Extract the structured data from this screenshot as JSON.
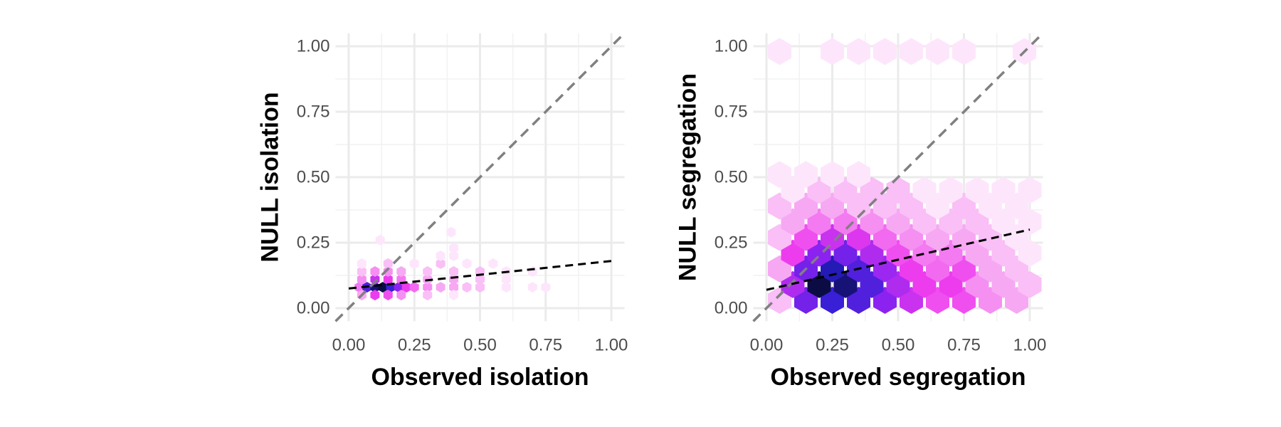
{
  "chart_data": [
    {
      "type": "hexbin",
      "x_label": "Observed isolation",
      "y_label": "NULL isolation",
      "xlim": [
        -0.05,
        1.05
      ],
      "ylim": [
        -0.05,
        1.05
      ],
      "xticks": [
        {
          "value": 0,
          "label": "0.00"
        },
        {
          "value": 0.25,
          "label": "0.25"
        },
        {
          "value": 0.5,
          "label": "0.50"
        },
        {
          "value": 0.75,
          "label": "0.75"
        },
        {
          "value": 1,
          "label": "1.00"
        }
      ],
      "yticks": [
        {
          "value": 0,
          "label": "0.00"
        },
        {
          "value": 0.25,
          "label": "0.25"
        },
        {
          "value": 0.5,
          "label": "0.50"
        },
        {
          "value": 0.75,
          "label": "0.75"
        },
        {
          "value": 1,
          "label": "1.00"
        }
      ],
      "grid": true,
      "colors": [
        "#fde6fb",
        "#f7a6f3",
        "#ee3cee",
        "#8a22f0",
        "#2a1ed0",
        "#0c0c45"
      ],
      "x": [
        0.04,
        0.07,
        0.1,
        0.13,
        0.16,
        0.19,
        0.22,
        0.25,
        0.3,
        0.35,
        0.4,
        0.45,
        0.5,
        0.6,
        0.7,
        0.75,
        0.05,
        0.1,
        0.15,
        0.2,
        0.3,
        0.4,
        0.05,
        0.1,
        0.15,
        0.2,
        0.3,
        0.4,
        0.5,
        0.6,
        0.05,
        0.1,
        0.15,
        0.2,
        0.3,
        0.4,
        0.5,
        0.6,
        0.7,
        0.05,
        0.15,
        0.25,
        0.35,
        0.45,
        0.55,
        0.35,
        0.4,
        0.4,
        0.12,
        0.39
      ],
      "y": [
        0.08,
        0.08,
        0.08,
        0.08,
        0.08,
        0.08,
        0.08,
        0.08,
        0.08,
        0.08,
        0.08,
        0.08,
        0.08,
        0.08,
        0.08,
        0.08,
        0.05,
        0.05,
        0.05,
        0.05,
        0.05,
        0.05,
        0.11,
        0.11,
        0.11,
        0.11,
        0.11,
        0.11,
        0.11,
        0.11,
        0.14,
        0.14,
        0.14,
        0.14,
        0.14,
        0.14,
        0.14,
        0.14,
        0.14,
        0.17,
        0.17,
        0.17,
        0.17,
        0.17,
        0.17,
        0.2,
        0.2,
        0.23,
        0.26,
        0.29
      ],
      "counts": [
        5,
        60,
        200,
        300,
        80,
        30,
        10,
        6,
        4,
        3,
        3,
        2,
        2,
        1,
        1,
        1,
        3,
        10,
        8,
        4,
        2,
        1,
        4,
        15,
        10,
        5,
        3,
        3,
        2,
        1,
        2,
        4,
        4,
        3,
        2,
        2,
        2,
        1,
        1,
        1,
        2,
        1,
        2,
        1,
        1,
        1,
        1,
        1,
        1,
        1
      ],
      "fit_line": {
        "x": [
          0,
          1
        ],
        "y": [
          0.075,
          0.18
        ]
      }
    },
    {
      "type": "hexbin",
      "x_label": "Observed segregation",
      "y_label": "NULL segregation",
      "xlim": [
        -0.05,
        1.05
      ],
      "ylim": [
        -0.05,
        1.05
      ],
      "xticks": [
        {
          "value": 0,
          "label": "0.00"
        },
        {
          "value": 0.25,
          "label": "0.25"
        },
        {
          "value": 0.5,
          "label": "0.50"
        },
        {
          "value": 0.75,
          "label": "0.75"
        },
        {
          "value": 1,
          "label": "1.00"
        }
      ],
      "yticks": [
        {
          "value": 0,
          "label": "0.00"
        },
        {
          "value": 0.25,
          "label": "0.25"
        },
        {
          "value": 0.5,
          "label": "0.50"
        },
        {
          "value": 0.75,
          "label": "0.75"
        },
        {
          "value": 1,
          "label": "1.00"
        }
      ],
      "grid": true,
      "colors": [
        "#fde6fb",
        "#f7a6f3",
        "#ee3cee",
        "#8a22f0",
        "#2a1ed0",
        "#0c0c45"
      ],
      "x": [
        0.05,
        0.15,
        0.25,
        0.35,
        0.45,
        0.55,
        0.65,
        0.75,
        0.85,
        0.95,
        0.1,
        0.2,
        0.3,
        0.4,
        0.5,
        0.6,
        0.7,
        0.8,
        0.9,
        1.0,
        0.05,
        0.15,
        0.25,
        0.35,
        0.45,
        0.55,
        0.65,
        0.75,
        0.85,
        0.95,
        0.1,
        0.2,
        0.3,
        0.4,
        0.5,
        0.6,
        0.7,
        0.8,
        0.9,
        1.0,
        0.05,
        0.15,
        0.25,
        0.35,
        0.45,
        0.55,
        0.65,
        0.75,
        0.85,
        0.95,
        0.1,
        0.2,
        0.3,
        0.4,
        0.5,
        0.6,
        0.7,
        0.8,
        0.9,
        1.0,
        0.05,
        0.15,
        0.25,
        0.35,
        0.45,
        0.55,
        0.65,
        0.75,
        0.85,
        0.95,
        0.1,
        0.2,
        0.3,
        0.4,
        0.5,
        0.6,
        0.7,
        0.8,
        0.9,
        1.0,
        0.05,
        0.15,
        0.25,
        0.35,
        0.05,
        0.25,
        0.35,
        0.45,
        0.55,
        0.65,
        0.75,
        0.98
      ],
      "y": [
        0.03,
        0.03,
        0.03,
        0.03,
        0.03,
        0.03,
        0.03,
        0.03,
        0.03,
        0.03,
        0.09,
        0.09,
        0.09,
        0.09,
        0.09,
        0.09,
        0.09,
        0.09,
        0.09,
        0.09,
        0.15,
        0.15,
        0.15,
        0.15,
        0.15,
        0.15,
        0.15,
        0.15,
        0.15,
        0.15,
        0.21,
        0.21,
        0.21,
        0.21,
        0.21,
        0.21,
        0.21,
        0.21,
        0.21,
        0.21,
        0.27,
        0.27,
        0.27,
        0.27,
        0.27,
        0.27,
        0.27,
        0.27,
        0.27,
        0.27,
        0.33,
        0.33,
        0.33,
        0.33,
        0.33,
        0.33,
        0.33,
        0.33,
        0.33,
        0.33,
        0.39,
        0.39,
        0.39,
        0.39,
        0.39,
        0.39,
        0.39,
        0.39,
        0.39,
        0.39,
        0.45,
        0.45,
        0.45,
        0.45,
        0.45,
        0.45,
        0.45,
        0.45,
        0.45,
        0.45,
        0.51,
        0.51,
        0.51,
        0.51,
        0.98,
        0.98,
        0.98,
        0.98,
        0.98,
        0.98,
        0.98,
        0.98
      ],
      "counts": [
        2,
        40,
        80,
        60,
        30,
        15,
        8,
        8,
        4,
        3,
        20,
        300,
        200,
        60,
        20,
        10,
        10,
        4,
        3,
        2,
        3,
        40,
        120,
        60,
        25,
        10,
        6,
        8,
        3,
        2,
        10,
        30,
        40,
        20,
        8,
        5,
        5,
        3,
        2,
        1,
        2,
        8,
        15,
        12,
        6,
        4,
        3,
        3,
        2,
        1,
        3,
        5,
        5,
        4,
        3,
        2,
        2,
        2,
        1,
        1,
        2,
        3,
        3,
        2,
        2,
        2,
        1,
        2,
        1,
        1,
        1,
        2,
        2,
        2,
        2,
        1,
        1,
        1,
        1,
        1,
        1,
        1,
        1,
        1,
        1,
        1,
        1,
        1,
        1,
        1,
        1,
        1
      ],
      "fit_line": {
        "x": [
          0,
          1
        ],
        "y": [
          0.07,
          0.3
        ]
      }
    }
  ]
}
